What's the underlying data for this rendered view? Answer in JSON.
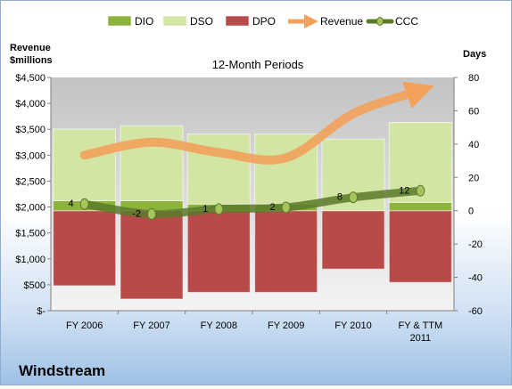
{
  "chart_data": {
    "type": "bar",
    "title": "12-Month Periods",
    "company": "Windstream",
    "y_left_label": [
      "Revenue",
      "$millions"
    ],
    "y_right_label": "Days",
    "y_left_ticks": [
      "$-",
      "$500",
      "$1,000",
      "$1,500",
      "$2,000",
      "$2,500",
      "$3,000",
      "$3,500",
      "$4,000",
      "$4,500"
    ],
    "y_right_ticks": [
      "-60",
      "-40",
      "-20",
      "0",
      "20",
      "40",
      "60",
      "80"
    ],
    "y_left_lim": [
      0,
      4500
    ],
    "y_right_lim": [
      -60,
      80
    ],
    "grid": false,
    "legend_position": "top",
    "categories": [
      [
        "FY 2006"
      ],
      [
        "FY 2007"
      ],
      [
        "FY 2008"
      ],
      [
        "FY 2009"
      ],
      [
        "FY 2010"
      ],
      [
        "FY & TTM",
        "2011"
      ]
    ],
    "series": [
      {
        "name": "DIO",
        "kind": "stacked-bar",
        "axis": "right",
        "color": "#8db33a",
        "values": [
          6,
          6,
          4,
          4,
          0,
          5
        ]
      },
      {
        "name": "DSO",
        "kind": "stacked-bar",
        "axis": "right",
        "color": "#d3e5a4",
        "values": [
          43,
          45,
          42,
          42,
          43,
          48
        ]
      },
      {
        "name": "DPO",
        "kind": "bar-below-zero",
        "axis": "right",
        "color": "#b84a4a",
        "values": [
          45,
          53,
          49,
          49,
          35,
          43
        ]
      },
      {
        "name": "Revenue",
        "kind": "line",
        "axis": "left",
        "color": "#f2a15a",
        "values": [
          3000,
          3250,
          3050,
          2950,
          3800,
          4250
        ]
      },
      {
        "name": "CCC",
        "kind": "line",
        "axis": "right",
        "color": "#5a7a2a",
        "values": [
          4,
          -2,
          1,
          2,
          8,
          12
        ]
      }
    ],
    "ccc_labels": [
      "4",
      "-2",
      "1",
      "2",
      "8",
      "12"
    ]
  }
}
